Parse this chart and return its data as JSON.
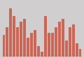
{
  "values": [
    4.0,
    5.5,
    9.0,
    7.5,
    5.5,
    6.5,
    7.0,
    3.5,
    4.5,
    5.0,
    2.0,
    1.0,
    7.5,
    4.5,
    4.5,
    5.5,
    6.5,
    7.0,
    3.0,
    5.5,
    6.0,
    2.5,
    1.5
  ],
  "bar_color": "#cc6655",
  "background_color": "#d0cece",
  "ylim": [
    0,
    10.0
  ],
  "bar_width": 0.75
}
